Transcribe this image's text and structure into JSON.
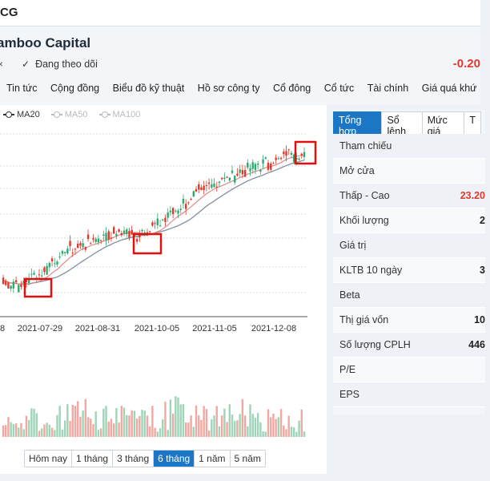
{
  "ticker": "CG",
  "company": "amboo Capital",
  "close_mark": "×",
  "follow_label": "Đang theo dõi",
  "price_change": "-0.20",
  "nav": [
    "Tin tức",
    "Cộng đồng",
    "Biểu đồ kỹ thuật",
    "Hồ sơ công ty",
    "Cổ đông",
    "Cổ tức",
    "Tài chính",
    "Giá quá khứ"
  ],
  "legend": [
    {
      "label": "MA20",
      "active": true
    },
    {
      "label": "MA50",
      "active": false
    },
    {
      "label": "MA100",
      "active": false
    }
  ],
  "periods": [
    "Hôm nay",
    "1 tháng",
    "3 tháng",
    "6 tháng",
    "1 năm",
    "5 năm"
  ],
  "active_period": "6 tháng",
  "tabs": [
    "Tổng hợp",
    "Sổ lệnh",
    "Mức giá",
    "T"
  ],
  "active_tab": "Tổng hợp",
  "stats": [
    {
      "label": "Tham chiếu",
      "value": ""
    },
    {
      "label": "Mở cửa",
      "value": ""
    },
    {
      "label": "Thấp - Cao",
      "value": "23.20",
      "red": true
    },
    {
      "label": "Khối lượng",
      "value": "2"
    },
    {
      "label": "Giá trị",
      "value": ""
    },
    {
      "label": "KLTB 10 ngày",
      "value": "3"
    },
    {
      "label": "Beta",
      "value": ""
    },
    {
      "label": "Thị giá vốn",
      "value": "10"
    },
    {
      "label": "Số lượng CPLH",
      "value": "446"
    },
    {
      "label": "P/E",
      "value": ""
    },
    {
      "label": "EPS",
      "value": ""
    }
  ],
  "colors": {
    "up": "#2eaa6f",
    "down": "#e0392b",
    "ma20": "#e08a8a",
    "ma50": "#8a96a6",
    "accent": "#1b77c5",
    "highlight": "#e01010"
  },
  "chart_data": {
    "type": "candlestick",
    "x_ticks": [
      "8",
      "2021-07-29",
      "2021-08-31",
      "2021-10-05",
      "2021-11-05",
      "2021-12-08"
    ],
    "trend": [
      1.8,
      1.4,
      1.0,
      2.2,
      3.0,
      4.6,
      5.8,
      6.8,
      7.2,
      7.8,
      8.4,
      9.0,
      9.4,
      9.0,
      8.8,
      9.4,
      10.5,
      11.8,
      13.0,
      14.0,
      15.2,
      16.0,
      16.8,
      17.5,
      18.0,
      18.6,
      19.0,
      19.4,
      20.2,
      21.2,
      21.0,
      20.8
    ]
  }
}
